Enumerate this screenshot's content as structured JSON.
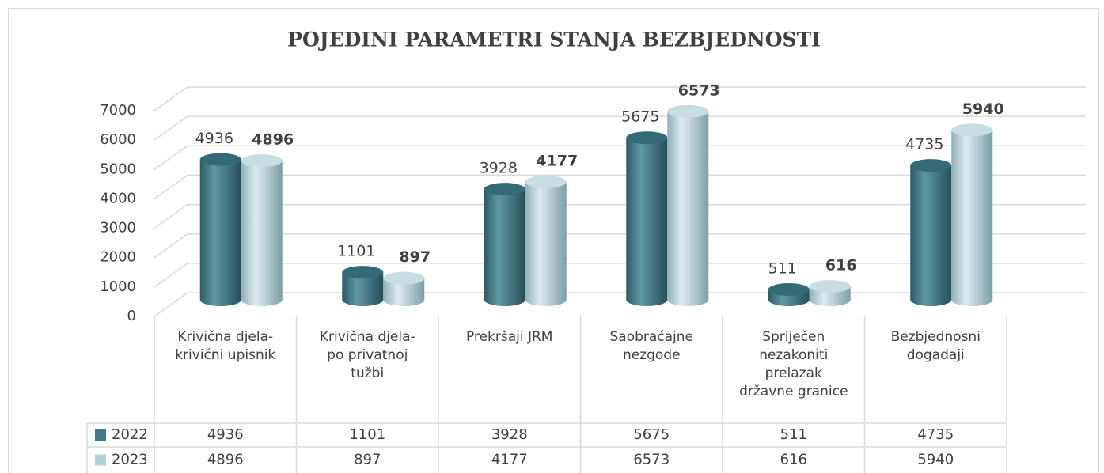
{
  "chart_data": {
    "type": "bar3d",
    "title": "POJEDINI PARAMETRI STANJA BEZBJEDNOSTI",
    "categories": [
      [
        "Krivična djela-",
        "krivični upisnik"
      ],
      [
        "Krivična djela-",
        "po privatnoj",
        "tužbi"
      ],
      [
        "Prekršaji JRM"
      ],
      [
        "Saobraćajne",
        "nezgode"
      ],
      [
        "Spriječen",
        "nezakoniti",
        "prelazak",
        "državne granice"
      ],
      [
        "Bezbjednosni",
        "događaji"
      ]
    ],
    "series": [
      {
        "name": "2022",
        "color": "#3f7a87",
        "values": [
          4936,
          1101,
          3928,
          5675,
          511,
          4735
        ]
      },
      {
        "name": "2023",
        "color": "#b4d0d8",
        "values": [
          4896,
          897,
          4177,
          6573,
          616,
          5940
        ]
      }
    ],
    "ylim": [
      0,
      7000
    ],
    "yticks": [
      0,
      1000,
      2000,
      3000,
      4000,
      5000,
      6000,
      7000
    ],
    "grid": true,
    "data_table": true
  }
}
